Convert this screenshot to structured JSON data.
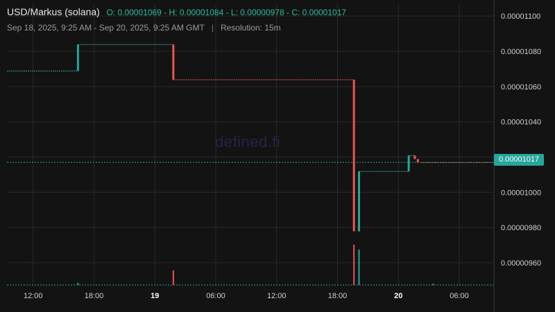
{
  "header": {
    "pair": "USD/Markus (solana)",
    "ohlc": "O: 0.00001069 - H: 0.00001084 - L: 0.00000978 - C: 0.00001017",
    "range": "Sep 18, 2025, 9:25 AM - Sep 20, 2025, 9:25 AM GMT",
    "separator": "|",
    "resolution": "Resolution: 15m"
  },
  "watermark": "defined.fi",
  "colors": {
    "up": "#26a69a",
    "down": "#ef5350",
    "grid": "#2a2a2a",
    "text": "#cfcfcf",
    "background": "#131313"
  },
  "chart_data": {
    "type": "candlestick",
    "y_ticks": [
      "0.00001100",
      "0.00001080",
      "0.00001060",
      "0.00001040",
      "0.00001020",
      "0.00001000",
      "0.00000980",
      "0.00000960"
    ],
    "y_tick_values": [
      1.1e-05,
      1.08e-05,
      1.06e-05,
      1.04e-05,
      1.02e-05,
      1e-05,
      9.8e-06,
      9.6e-06
    ],
    "ylim": [
      9.47e-06,
      1.104e-05
    ],
    "x_ticks": [
      {
        "label": "12:00",
        "bold": false
      },
      {
        "label": "18:00",
        "bold": false
      },
      {
        "label": "19",
        "bold": true
      },
      {
        "label": "06:00",
        "bold": false
      },
      {
        "label": "12:00",
        "bold": false
      },
      {
        "label": "18:00",
        "bold": false
      },
      {
        "label": "20",
        "bold": true
      },
      {
        "label": "06:00",
        "bold": false
      }
    ],
    "x_tick_hours": [
      2.583,
      8.583,
      14.583,
      20.583,
      26.583,
      32.583,
      38.583,
      44.583
    ],
    "x_range_hours": [
      0,
      48
    ],
    "current_price": 1.017e-05,
    "current_price_label": "0.00001017",
    "segments": [
      {
        "t0": 0,
        "t1": 7.0,
        "price": 1.06885e-05,
        "dir": "up"
      },
      {
        "t0": 7.0,
        "t1": 16.4,
        "price": 1.08385e-05,
        "dir": "up"
      },
      {
        "t0": 16.4,
        "t1": 34.2,
        "price": 1.06385e-05,
        "dir": "down"
      },
      {
        "t0": 34.7,
        "t1": 39.6,
        "price": 1.01185e-05,
        "dir": "up"
      },
      {
        "t0": 39.6,
        "t1": 40.2,
        "price": 1.02085e-05,
        "dir": "up"
      },
      {
        "t0": 40.8,
        "t1": 48,
        "price": 1.01685e-05,
        "dir": "down"
      }
    ],
    "candles": [
      {
        "t": 7.0,
        "open": 1.06885e-05,
        "close": 1.08385e-05,
        "dir": "up"
      },
      {
        "t": 16.4,
        "open": 1.08385e-05,
        "close": 1.06385e-05,
        "dir": "down"
      },
      {
        "t": 34.2,
        "open": 1.06385e-05,
        "close": 9.7785e-06,
        "dir": "down"
      },
      {
        "t": 34.7,
        "open": 9.7785e-06,
        "close": 1.01185e-05,
        "dir": "up"
      },
      {
        "t": 39.6,
        "open": 1.01185e-05,
        "close": 1.02085e-05,
        "dir": "up"
      },
      {
        "t": 40.2,
        "open": 1.02085e-05,
        "close": 1.01885e-05,
        "dir": "down"
      },
      {
        "t": 40.5,
        "open": 1.01885e-05,
        "close": 1.01685e-05,
        "dir": "down"
      }
    ],
    "volume": [
      {
        "t": 7.0,
        "level": 0.05,
        "dir": "up"
      },
      {
        "t": 16.4,
        "level": 0.35,
        "dir": "down"
      },
      {
        "t": 34.2,
        "level": 0.97,
        "dir": "down"
      },
      {
        "t": 34.7,
        "level": 0.85,
        "dir": "up"
      },
      {
        "t": 42.0,
        "level": 0.03,
        "dir": "down"
      }
    ]
  }
}
